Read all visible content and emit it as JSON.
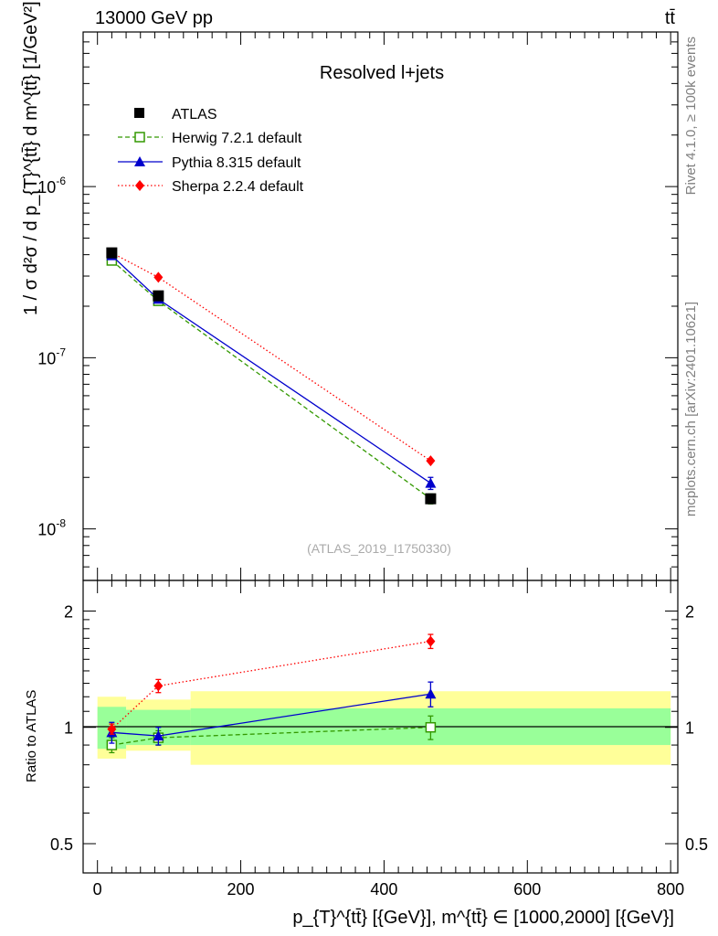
{
  "header": {
    "left": "13000 GeV pp",
    "right": "tt̄",
    "side_top": "Rivet 4.1.0, ≥ 100k events",
    "side_bottom": "mcplots.cern.ch [arXiv:2401.10621]"
  },
  "colors": {
    "atlas": "#000000",
    "herwig": "#339900",
    "pythia": "#0000cc",
    "sherpa": "#ff0000",
    "band_inner": "#99ff99",
    "band_outer": "#ffff99"
  },
  "chart_data": [
    {
      "type": "line",
      "panel": "main",
      "title": "Resolved l+jets",
      "watermark": "(ATLAS_2019_I1750330)",
      "ylabel": "1 / σ d²σ / d p_{T}^{tt̄} d m^{tt̄} [1/GeV²]",
      "yscale": "log",
      "ylim": [
        5e-09,
        8e-06
      ],
      "ytick_labels": [
        "10^-8",
        "10^-7",
        "10^-6"
      ],
      "xlim": [
        -20,
        810
      ],
      "x": [
        20,
        85,
        465
      ],
      "x_bins": [
        [
          0,
          40
        ],
        [
          40,
          130
        ],
        [
          130,
          800
        ]
      ],
      "legend": [
        "ATLAS",
        "Herwig 7.2.1 default",
        "Pythia 8.315 default",
        "Sherpa 2.2.4 default"
      ],
      "series": [
        {
          "name": "ATLAS",
          "values": [
            4.1e-07,
            2.3e-07,
            1.5e-08
          ]
        },
        {
          "name": "Herwig 7.2.1 default",
          "values": [
            3.7e-07,
            2.15e-07,
            1.5e-08
          ],
          "err": [
            1.5e-09,
            1e-08,
            1e-09
          ]
        },
        {
          "name": "Pythia 8.315 default",
          "values": [
            3.95e-07,
            2.2e-07,
            1.85e-08
          ],
          "err": [
            1e-08,
            1e-08,
            1.5e-09
          ]
        },
        {
          "name": "Sherpa 2.2.4 default",
          "values": [
            4.1e-07,
            2.95e-07,
            2.5e-08
          ]
        }
      ]
    },
    {
      "type": "line",
      "panel": "ratio",
      "ylabel": "Ratio to ATLAS",
      "yscale": "log",
      "ylim": [
        0.42,
        2.4
      ],
      "ytick_labels": [
        "0.5",
        "1",
        "2"
      ],
      "xlabel": "p_{T}^{tt̄} [{GeV}], m^{tt̄} ∈ [1000,2000] [{GeV}]",
      "xtick_labels": [
        "0",
        "200",
        "400",
        "600",
        "800"
      ],
      "x": [
        20,
        85,
        465
      ],
      "bands": {
        "inner": [
          [
            0.88,
            1.13
          ],
          [
            0.9,
            1.11
          ],
          [
            0.9,
            1.12
          ]
        ],
        "outer": [
          [
            0.83,
            1.2
          ],
          [
            0.87,
            1.18
          ],
          [
            0.8,
            1.24
          ]
        ]
      },
      "series": [
        {
          "name": "Herwig 7.2.1 default",
          "values": [
            0.9,
            0.94,
            1.0
          ],
          "err": [
            0.04,
            0.04,
            0.07
          ]
        },
        {
          "name": "Pythia 8.315 default",
          "values": [
            0.97,
            0.95,
            1.22
          ],
          "err": [
            0.06,
            0.05,
            0.09
          ]
        },
        {
          "name": "Sherpa 2.2.4 default",
          "values": [
            0.99,
            1.28,
            1.67
          ],
          "err": [
            0.03,
            0.05,
            0.07
          ]
        }
      ]
    }
  ]
}
